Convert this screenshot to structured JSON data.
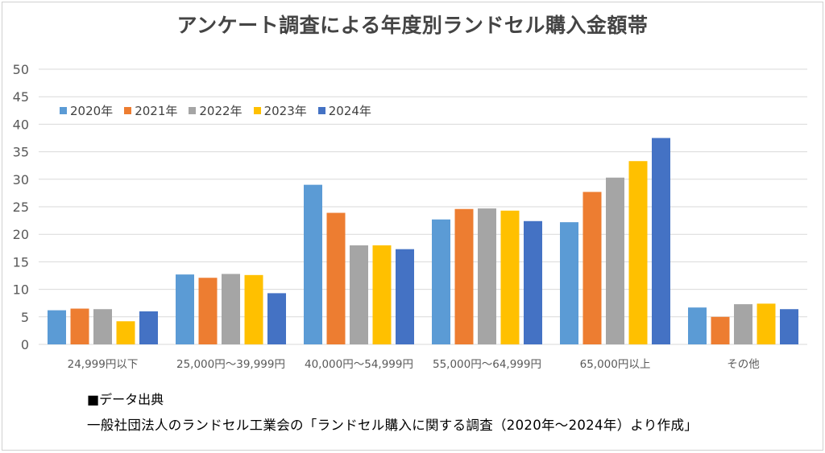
{
  "colors": {
    "2020年": "#5b9bd5",
    "2021年": "#ed7d31",
    "2022年": "#a5a5a5",
    "2023年": "#ffc000",
    "2024年": "#4472c4",
    "grid": "#d9d9d9",
    "axis_text": "#595959"
  },
  "chart_data": {
    "type": "bar",
    "title": "アンケート調査による年度別ランドセル購入金額帯",
    "xlabel": "",
    "ylabel": "",
    "ylim": [
      0,
      50
    ],
    "yticks": [
      "0",
      "5",
      "10",
      "15",
      "20",
      "25",
      "30",
      "35",
      "40",
      "45",
      "50"
    ],
    "grid": true,
    "legend_position": "top-left",
    "categories": [
      "24,999円以下",
      "25,000円～39,999円",
      "40,000円～54,999円",
      "55,000円～64,999円",
      "65,000円以上",
      "その他"
    ],
    "series": [
      {
        "name": "2020年",
        "values": [
          6.2,
          12.7,
          29.0,
          22.7,
          22.2,
          6.7
        ]
      },
      {
        "name": "2021年",
        "values": [
          6.5,
          12.1,
          23.9,
          24.6,
          27.7,
          5.0
        ]
      },
      {
        "name": "2022年",
        "values": [
          6.4,
          12.8,
          18.0,
          24.7,
          30.3,
          7.3
        ]
      },
      {
        "name": "2023年",
        "values": [
          4.2,
          12.6,
          18.0,
          24.3,
          33.3,
          7.4
        ]
      },
      {
        "name": "2024年",
        "values": [
          6.0,
          9.3,
          17.3,
          22.4,
          37.5,
          6.4
        ]
      }
    ]
  },
  "source": {
    "heading": "■データ出典",
    "text": "一般社団法人のランドセル工業会の「ランドセル購入に関する調査（2020年～2024年）より作成」"
  }
}
